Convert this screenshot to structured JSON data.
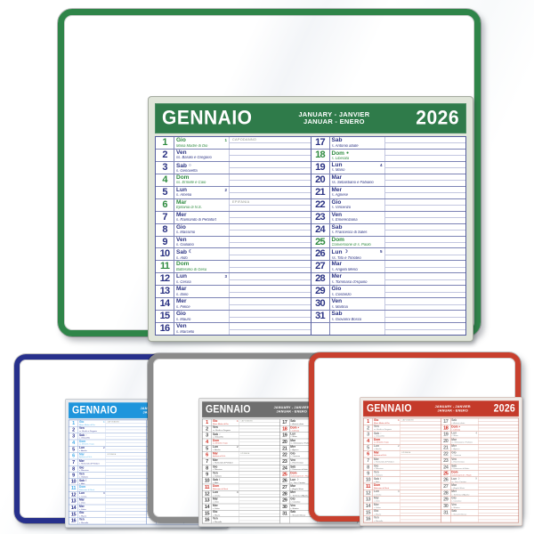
{
  "title": {
    "month": "GENNAIO",
    "translations_line1": "JANUARY - JANVIER",
    "translations_line2": "JANUAR - ENERO",
    "year": "2026"
  },
  "days": [
    {
      "num": "1",
      "name": "Gio",
      "saint": "Maria Madre di Dio",
      "holiday": true,
      "moon": "",
      "week": "1",
      "note": "CAPODANNO"
    },
    {
      "num": "2",
      "name": "Ven",
      "saint": "ss. Basilio e Gregorio",
      "holiday": false,
      "moon": "",
      "week": "",
      "note": ""
    },
    {
      "num": "3",
      "name": "Sab",
      "saint": "s. Genoveffa",
      "holiday": false,
      "moon": "○",
      "week": "",
      "note": ""
    },
    {
      "num": "4",
      "name": "Dom",
      "saint": "ss. Ermete e Caio",
      "holiday": true,
      "moon": "",
      "week": "",
      "note": ""
    },
    {
      "num": "5",
      "name": "Lun",
      "saint": "s. Amelia",
      "holiday": false,
      "moon": "",
      "week": "2",
      "note": ""
    },
    {
      "num": "6",
      "name": "Mar",
      "saint": "Epifania di N.S.",
      "holiday": true,
      "moon": "",
      "week": "",
      "note": "EPIFANIA"
    },
    {
      "num": "7",
      "name": "Mer",
      "saint": "s. Raimondo di Peñafort",
      "holiday": false,
      "moon": "",
      "week": "",
      "note": ""
    },
    {
      "num": "8",
      "name": "Gio",
      "saint": "s. Massimo",
      "holiday": false,
      "moon": "",
      "week": "",
      "note": ""
    },
    {
      "num": "9",
      "name": "Ven",
      "saint": "s. Giuliano",
      "holiday": false,
      "moon": "",
      "week": "",
      "note": ""
    },
    {
      "num": "10",
      "name": "Sab",
      "saint": "s. Aldo",
      "holiday": false,
      "moon": "☾",
      "week": "",
      "note": ""
    },
    {
      "num": "11",
      "name": "Dom",
      "saint": "Battesimo di Gesù",
      "holiday": true,
      "moon": "",
      "week": "",
      "note": ""
    },
    {
      "num": "12",
      "name": "Lun",
      "saint": "s. Cesira",
      "holiday": false,
      "moon": "",
      "week": "3",
      "note": ""
    },
    {
      "num": "13",
      "name": "Mar",
      "saint": "s. Ilario",
      "holiday": false,
      "moon": "",
      "week": "",
      "note": ""
    },
    {
      "num": "14",
      "name": "Mer",
      "saint": "s. Felice",
      "holiday": false,
      "moon": "",
      "week": "",
      "note": ""
    },
    {
      "num": "15",
      "name": "Gio",
      "saint": "s. Mauro",
      "holiday": false,
      "moon": "",
      "week": "",
      "note": ""
    },
    {
      "num": "16",
      "name": "Ven",
      "saint": "s. Marcello",
      "holiday": false,
      "moon": "",
      "week": "",
      "note": ""
    },
    {
      "num": "17",
      "name": "Sab",
      "saint": "s. Antonio abate",
      "holiday": false,
      "moon": "",
      "week": "",
      "note": ""
    },
    {
      "num": "18",
      "name": "Dom",
      "saint": "s. Liberata",
      "holiday": true,
      "moon": "●",
      "week": "",
      "note": ""
    },
    {
      "num": "19",
      "name": "Lun",
      "saint": "s. Mario",
      "holiday": false,
      "moon": "",
      "week": "4",
      "note": ""
    },
    {
      "num": "20",
      "name": "Mar",
      "saint": "ss. Sebastiano e Fabiano",
      "holiday": false,
      "moon": "",
      "week": "",
      "note": ""
    },
    {
      "num": "21",
      "name": "Mer",
      "saint": "s. Agnese",
      "holiday": false,
      "moon": "",
      "week": "",
      "note": ""
    },
    {
      "num": "22",
      "name": "Gio",
      "saint": "s. Vincenzo",
      "holiday": false,
      "moon": "",
      "week": "",
      "note": ""
    },
    {
      "num": "23",
      "name": "Ven",
      "saint": "s. Emerenziana",
      "holiday": false,
      "moon": "",
      "week": "",
      "note": ""
    },
    {
      "num": "24",
      "name": "Sab",
      "saint": "s. Francesco di Sales",
      "holiday": false,
      "moon": "",
      "week": "",
      "note": ""
    },
    {
      "num": "25",
      "name": "Dom",
      "saint": "Conversione di s. Paolo",
      "holiday": true,
      "moon": "",
      "week": "",
      "note": ""
    },
    {
      "num": "26",
      "name": "Lun",
      "saint": "ss. Tito e Timoteo",
      "holiday": false,
      "moon": "☽",
      "week": "5",
      "note": ""
    },
    {
      "num": "27",
      "name": "Mar",
      "saint": "s. Angela Merici",
      "holiday": false,
      "moon": "",
      "week": "",
      "note": ""
    },
    {
      "num": "28",
      "name": "Mer",
      "saint": "s. Tommaso d'Aquino",
      "holiday": false,
      "moon": "",
      "week": "",
      "note": ""
    },
    {
      "num": "29",
      "name": "Gio",
      "saint": "s. Costanzo",
      "holiday": false,
      "moon": "",
      "week": "",
      "note": ""
    },
    {
      "num": "30",
      "name": "Ven",
      "saint": "s. Martina",
      "holiday": false,
      "moon": "",
      "week": "",
      "note": ""
    },
    {
      "num": "31",
      "name": "Sab",
      "saint": "s. Giovanni Bosco",
      "holiday": false,
      "moon": "",
      "week": "",
      "note": ""
    }
  ],
  "themes": {
    "green": {
      "hdr": "#2f7b4a",
      "hol": "#2f8b40",
      "num": "#2b3383",
      "rowline": "#7d84b5",
      "mid": "#c3c7e0",
      "gridbd": "#565e9e",
      "sheetbg": "#e0e5d9",
      "sheetbd": "#a3a99e"
    },
    "blue": {
      "hdr": "#1e95dc",
      "hol": "#43aae8",
      "num": "#28308a",
      "rowline": "#8fa9d8",
      "mid": "#cdd8ee",
      "gridbd": "#5f7fc0",
      "sheetbg": "#e7eaee",
      "sheetbd": "#a8aeb4"
    },
    "gray": {
      "hdr": "#6e6e6e",
      "hol": "#cf2b1f",
      "num": "#454545",
      "rowline": "#9d9d9d",
      "mid": "#d2d2d2",
      "gridbd": "#787878",
      "sheetbg": "#ebebeb",
      "sheetbd": "#a8a8a8"
    },
    "red": {
      "hdr": "#c43a2a",
      "hol": "#cf2b1f",
      "num": "#7d7d7d",
      "rowline": "#d49a8e",
      "mid": "#e8c6be",
      "gridbd": "#bd6a5c",
      "sheetbg": "#efeae6",
      "sheetbd": "#c0a69e"
    }
  }
}
